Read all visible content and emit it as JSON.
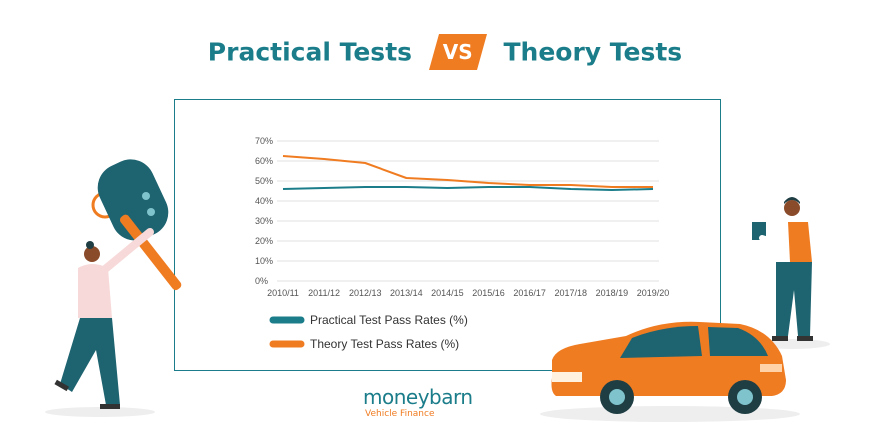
{
  "header": {
    "left": "Practical Tests",
    "vs": "VS",
    "right": "Theory Tests"
  },
  "colors": {
    "teal": "#1b7d8a",
    "orange": "#f07c22",
    "grid": "#e0e0e0"
  },
  "logo": {
    "name": "moneybarn",
    "tagline": "Vehicle Finance"
  },
  "chart_data": {
    "type": "line",
    "x": [
      "2010/11",
      "2011/12",
      "2012/13",
      "2013/14",
      "2014/15",
      "2015/16",
      "2016/17",
      "2017/18",
      "2018/19",
      "2019/20"
    ],
    "series": [
      {
        "name": "Practical Test Pass Rates (%)",
        "color": "#1b7d8a",
        "values": [
          46,
          46.5,
          47,
          47,
          46.5,
          47,
          47,
          46,
          45.5,
          46
        ]
      },
      {
        "name": "Theory Test Pass Rates (%)",
        "color": "#f07c22",
        "values": [
          62.5,
          61,
          59,
          51.5,
          50.5,
          49,
          48,
          48,
          47,
          47
        ]
      }
    ],
    "yticks": [
      "0%",
      "10%",
      "20%",
      "30%",
      "40%",
      "50%",
      "60%",
      "70%"
    ],
    "ylim": [
      0,
      70
    ],
    "grid": true,
    "legend_position": "bottom-left"
  }
}
